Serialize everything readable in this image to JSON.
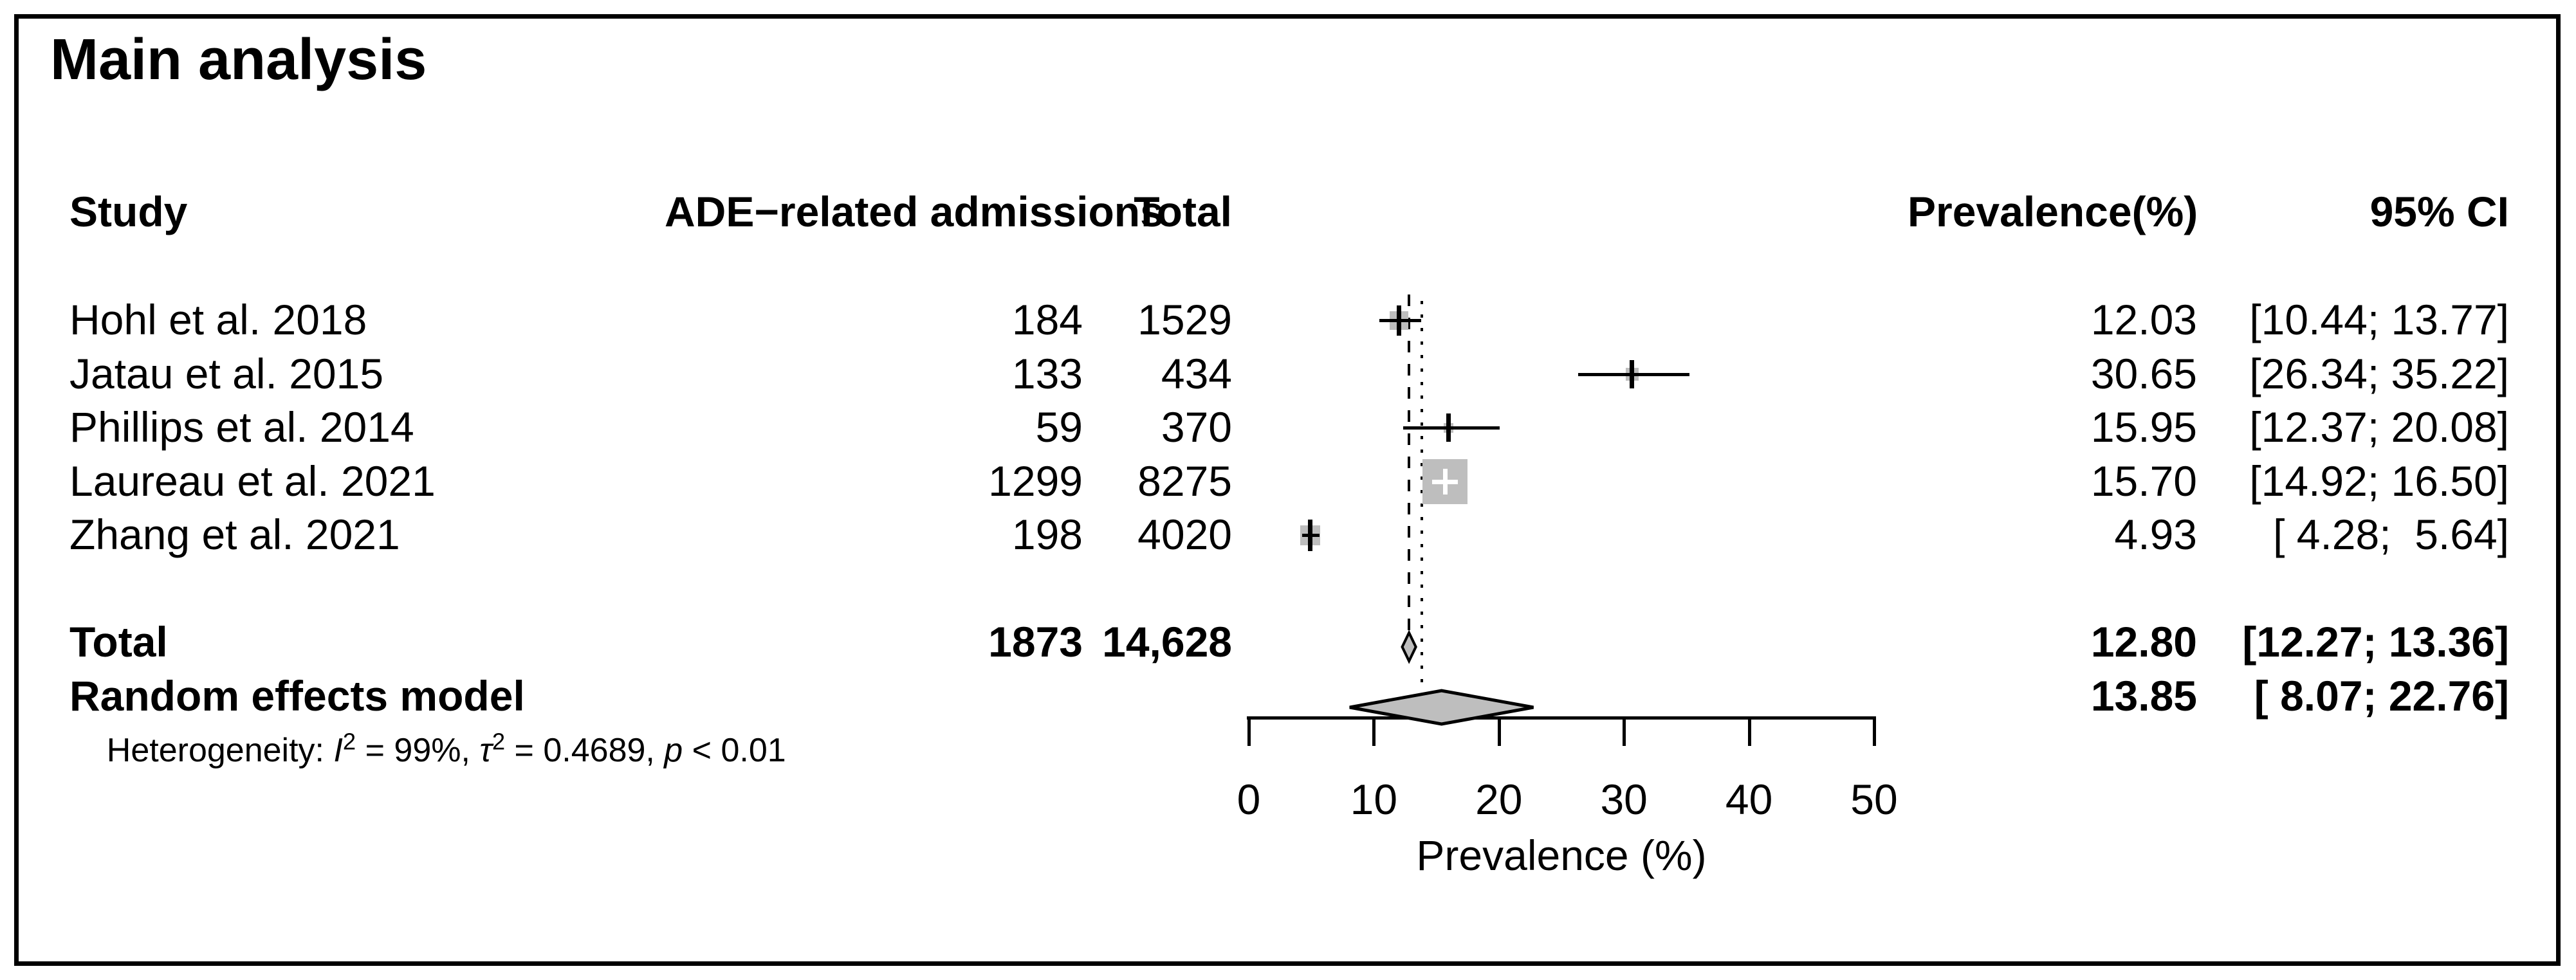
{
  "title": "Main analysis",
  "columns": {
    "study": "Study",
    "admissions": "ADE−related admissions",
    "total": "Total",
    "prevalence": "Prevalence(%)",
    "ci": "95% CI"
  },
  "studies": [
    {
      "label": "Hohl et al. 2018",
      "admissions": "184",
      "total": "1529",
      "prevalence": "12.03",
      "ci": "[10.44; 13.77]"
    },
    {
      "label": "Jatau et al. 2015",
      "admissions": "133",
      "total": "434",
      "prevalence": "30.65",
      "ci": "[26.34; 35.22]"
    },
    {
      "label": "Phillips et al. 2014",
      "admissions": "59",
      "total": "370",
      "prevalence": "15.95",
      "ci": "[12.37; 20.08]"
    },
    {
      "label": "Laureau et al. 2021",
      "admissions": "1299",
      "total": "8275",
      "prevalence": "15.70",
      "ci": "[14.92; 16.50]"
    },
    {
      "label": "Zhang et al. 2021",
      "admissions": "198",
      "total": "4020",
      "prevalence": "4.93",
      "ci": "[ 4.28;  5.64]"
    }
  ],
  "summary": {
    "total_label": "Total",
    "total_admissions": "1873",
    "total_total": "14,628",
    "total_prevalence": "12.80",
    "total_ci": "[12.27; 13.36]",
    "re_label": "Random effects model",
    "re_prevalence": "13.85",
    "re_ci": "[ 8.07; 22.76]"
  },
  "heterogeneity": {
    "prefix": "Heterogeneity: ",
    "i_sym": "I",
    "i_sup": "2",
    "seg1": " = 99%, ",
    "tau_sym": "τ",
    "tau_sup": "2",
    "seg2": " = 0.4689, ",
    "p_sym": "p",
    "seg3": " < 0.01"
  },
  "chart_data": {
    "type": "forest",
    "title": "Main analysis",
    "x_axis": {
      "label": "Prevalence (%)",
      "ticks": [
        0,
        10,
        20,
        30,
        40,
        50
      ],
      "range": [
        0,
        50
      ],
      "grid": false
    },
    "studies": [
      {
        "name": "Hohl et al. 2018",
        "events": 184,
        "n": 1529,
        "estimate": 12.03,
        "ci_low": 10.44,
        "ci_high": 13.77,
        "marker_size_px": 29,
        "marker_cross": "black"
      },
      {
        "name": "Jatau et al. 2015",
        "events": 133,
        "n": 434,
        "estimate": 30.65,
        "ci_low": 26.34,
        "ci_high": 35.22,
        "marker_size_px": 20,
        "marker_cross": "black"
      },
      {
        "name": "Phillips et al. 2014",
        "events": 59,
        "n": 370,
        "estimate": 15.95,
        "ci_low": 12.37,
        "ci_high": 20.08,
        "marker_size_px": 15,
        "marker_cross": "black"
      },
      {
        "name": "Laureau et al. 2021",
        "events": 1299,
        "n": 8275,
        "estimate": 15.7,
        "ci_low": 14.92,
        "ci_high": 16.5,
        "marker_size_px": 70,
        "marker_cross": "white"
      },
      {
        "name": "Zhang et al. 2021",
        "events": 198,
        "n": 4020,
        "estimate": 4.93,
        "ci_low": 4.28,
        "ci_high": 5.64,
        "marker_size_px": 31,
        "marker_cross": "black"
      }
    ],
    "common_effect": {
      "label": "Total",
      "events": 1873,
      "n": 14628,
      "estimate": 12.8,
      "ci_low": 12.27,
      "ci_high": 13.36,
      "diamond": "small-gray"
    },
    "random_effects": {
      "label": "Random effects model",
      "estimate": 13.85,
      "ci_low": 8.07,
      "ci_high": 22.76,
      "diamond": "large-gray"
    },
    "heterogeneity": {
      "I2": "99%",
      "tau2": 0.4689,
      "p": "< 0.01"
    },
    "reference_lines": [
      {
        "style": "dashed",
        "x": 12.8
      },
      {
        "style": "dotted",
        "x": 13.85
      }
    ],
    "marker_color": "#bebebe",
    "diamond_color": "#bebebe",
    "line_color": "#000000"
  }
}
